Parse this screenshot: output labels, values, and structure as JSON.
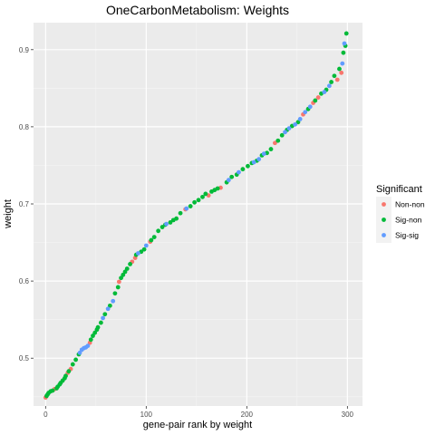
{
  "chart_data": {
    "type": "scatter",
    "title": "OneCarbonMetabolism: Weights",
    "xlabel": "gene-pair rank by weight",
    "ylabel": "weight",
    "xlim": [
      -12,
      315
    ],
    "ylim": [
      0.438,
      0.935
    ],
    "x_ticks": [
      0,
      100,
      200,
      300
    ],
    "x_tick_labels": [
      "0",
      "100",
      "200",
      "300"
    ],
    "y_ticks": [
      0.5,
      0.6,
      0.7,
      0.8,
      0.9
    ],
    "y_tick_labels": [
      "0.5",
      "0.6",
      "0.7",
      "0.8",
      "0.9"
    ],
    "grid": true,
    "panel_background": "#ebebeb",
    "legend": {
      "title": "Significant",
      "position": "right",
      "entries": [
        {
          "label": "Non-non",
          "color": "#f8766d"
        },
        {
          "label": "Sig-non",
          "color": "#00ba38"
        },
        {
          "label": "Sig-sig",
          "color": "#619cff"
        }
      ]
    },
    "series": [
      {
        "name": "Non-non",
        "color": "#f8766d",
        "x": [
          0,
          9,
          22,
          25,
          44,
          73,
          86,
          89,
          104,
          139,
          162,
          174,
          228,
          256,
          266,
          271,
          290,
          294
        ],
        "y": [
          0.449,
          0.46,
          0.481,
          0.486,
          0.52,
          0.599,
          0.625,
          0.63,
          0.651,
          0.693,
          0.711,
          0.721,
          0.779,
          0.816,
          0.831,
          0.838,
          0.861,
          0.87
        ]
      },
      {
        "name": "Sig-non",
        "color": "#00ba38",
        "x": [
          1,
          2,
          3,
          5,
          7,
          11,
          12,
          14,
          15,
          17,
          19,
          20,
          23,
          27,
          30,
          33,
          45,
          47,
          49,
          51,
          52,
          55,
          59,
          64,
          69,
          72,
          75,
          77,
          79,
          81,
          84,
          90,
          95,
          98,
          105,
          108,
          112,
          116,
          119,
          124,
          127,
          130,
          134,
          144,
          148,
          152,
          156,
          159,
          165,
          168,
          171,
          180,
          185,
          190,
          196,
          201,
          205,
          210,
          215,
          220,
          224,
          231,
          235,
          240,
          245,
          251,
          261,
          268,
          274,
          279,
          284,
          287,
          292,
          296,
          298,
          299
        ],
        "y": [
          0.451,
          0.453,
          0.455,
          0.457,
          0.458,
          0.461,
          0.463,
          0.466,
          0.468,
          0.471,
          0.474,
          0.477,
          0.483,
          0.492,
          0.498,
          0.505,
          0.524,
          0.529,
          0.533,
          0.537,
          0.54,
          0.546,
          0.557,
          0.568,
          0.584,
          0.592,
          0.604,
          0.608,
          0.612,
          0.616,
          0.622,
          0.634,
          0.638,
          0.641,
          0.653,
          0.657,
          0.665,
          0.67,
          0.673,
          0.676,
          0.679,
          0.681,
          0.688,
          0.697,
          0.702,
          0.705,
          0.709,
          0.713,
          0.716,
          0.718,
          0.72,
          0.728,
          0.735,
          0.738,
          0.745,
          0.749,
          0.753,
          0.756,
          0.763,
          0.766,
          0.771,
          0.782,
          0.789,
          0.796,
          0.801,
          0.806,
          0.823,
          0.834,
          0.843,
          0.848,
          0.858,
          0.866,
          0.875,
          0.896,
          0.905,
          0.921
        ]
      },
      {
        "name": "Sig-sig",
        "color": "#619cff",
        "x": [
          34,
          36,
          38,
          40,
          42,
          57,
          62,
          67,
          92,
          100,
          120,
          140,
          182,
          192,
          207,
          212,
          217,
          238,
          242,
          248,
          253,
          258,
          263,
          277,
          282,
          295,
          297
        ],
        "y": [
          0.507,
          0.511,
          0.513,
          0.514,
          0.516,
          0.552,
          0.564,
          0.574,
          0.636,
          0.646,
          0.674,
          0.694,
          0.731,
          0.741,
          0.754,
          0.758,
          0.765,
          0.793,
          0.798,
          0.803,
          0.81,
          0.819,
          0.826,
          0.845,
          0.853,
          0.882,
          0.908
        ]
      }
    ]
  }
}
